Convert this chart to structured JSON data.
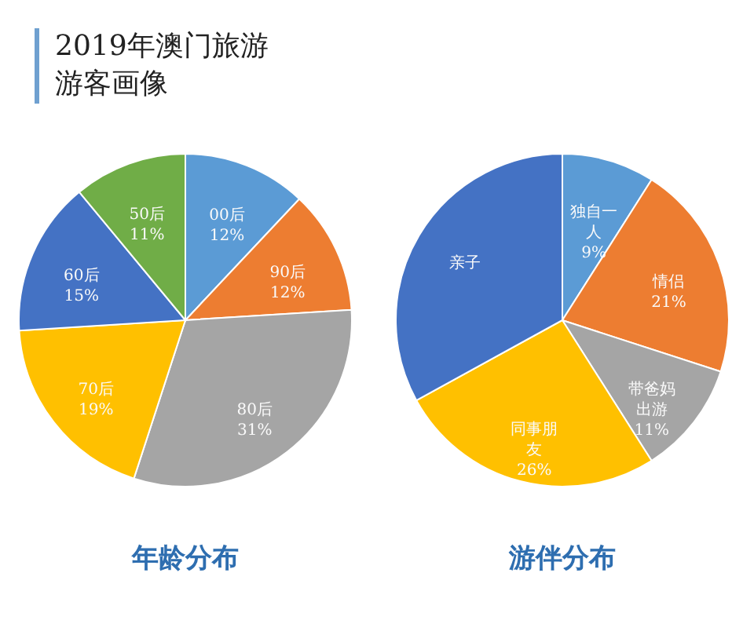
{
  "chart_data": [
    {
      "type": "pie",
      "title": "年龄分布",
      "annotations": [
        "2019年澳门旅游游客画像"
      ],
      "categories": [
        "00后",
        "90后",
        "80后",
        "70后",
        "60后",
        "50后"
      ],
      "values": [
        12,
        12,
        31,
        19,
        15,
        11
      ],
      "value_labels": [
        "12%",
        "12%",
        "31%",
        "19%",
        "15%",
        "11%"
      ],
      "colors": [
        "#5b9bd5",
        "#ed7d31",
        "#a5a5a5",
        "#ffc000",
        "#4472c4",
        "#70ad47"
      ],
      "legend": false
    },
    {
      "type": "pie",
      "title": "游伴分布",
      "categories": [
        "独自一人",
        "情侣",
        "带爸妈出游",
        "同事朋友",
        "亲子"
      ],
      "values": [
        9,
        21,
        11,
        26,
        33
      ],
      "value_labels": [
        "9%",
        "21%",
        "11%",
        "26%",
        null
      ],
      "colors": [
        "#5b9bd5",
        "#ed7d31",
        "#a5a5a5",
        "#ffc000",
        "#4472c4"
      ],
      "legend": false
    }
  ]
}
